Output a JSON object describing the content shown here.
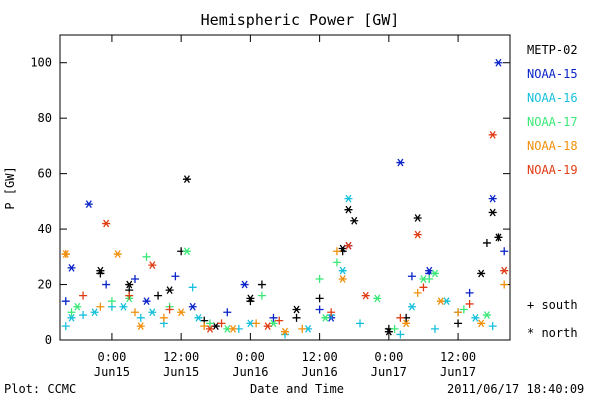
{
  "chart_data": {
    "type": "scatter",
    "title": "Hemispheric Power [GW]",
    "xlabel": "Date and Time",
    "ylabel": "P [GW]",
    "xlim": [
      "2011-06-14 15:00",
      "2011-06-17 21:00"
    ],
    "ylim": [
      0,
      110
    ],
    "yticks": [
      0,
      20,
      40,
      60,
      80,
      100
    ],
    "xtick_labels": [
      {
        "time": "2011-06-15 00:00",
        "top": "0:00",
        "bottom": "Jun15"
      },
      {
        "time": "2011-06-15 12:00",
        "top": "12:00",
        "bottom": "Jun15"
      },
      {
        "time": "2011-06-16 00:00",
        "top": "0:00",
        "bottom": "Jun16"
      },
      {
        "time": "2011-06-16 12:00",
        "top": "12:00",
        "bottom": "Jun16"
      },
      {
        "time": "2011-06-17 00:00",
        "top": "0:00",
        "bottom": "Jun17"
      },
      {
        "time": "2011-06-17 12:00",
        "top": "12:00",
        "bottom": "Jun17"
      }
    ],
    "marker_legend": [
      {
        "symbol": "+",
        "label": "south"
      },
      {
        "symbol": "*",
        "label": "north"
      }
    ],
    "series": [
      {
        "name": "METP-02",
        "color": "#000000",
        "south": [
          [
            "2011-06-14 22:00",
            24
          ],
          [
            "2011-06-15 03:00",
            18
          ],
          [
            "2011-06-15 08:00",
            16
          ],
          [
            "2011-06-15 12:00",
            32
          ],
          [
            "2011-06-15 16:00",
            7
          ],
          [
            "2011-06-16 00:00",
            14
          ],
          [
            "2011-06-16 02:00",
            20
          ],
          [
            "2011-06-16 08:00",
            8
          ],
          [
            "2011-06-16 12:00",
            15
          ],
          [
            "2011-06-16 16:00",
            32
          ],
          [
            "2011-06-17 00:00",
            4
          ],
          [
            "2011-06-17 03:00",
            8
          ],
          [
            "2011-06-17 12:00",
            6
          ],
          [
            "2011-06-17 17:00",
            35
          ],
          [
            "2011-06-17 19:00",
            37
          ]
        ],
        "north": [
          [
            "2011-06-14 22:00",
            25
          ],
          [
            "2011-06-15 03:00",
            20
          ],
          [
            "2011-06-15 10:00",
            18
          ],
          [
            "2011-06-15 13:00",
            58
          ],
          [
            "2011-06-15 18:00",
            5
          ],
          [
            "2011-06-16 00:00",
            15
          ],
          [
            "2011-06-16 08:00",
            11
          ],
          [
            "2011-06-16 16:00",
            33
          ],
          [
            "2011-06-16 18:00",
            43
          ],
          [
            "2011-06-16 17:00",
            47
          ],
          [
            "2011-06-17 00:00",
            3
          ],
          [
            "2011-06-17 05:00",
            44
          ],
          [
            "2011-06-17 16:00",
            24
          ],
          [
            "2011-06-17 18:00",
            46
          ],
          [
            "2011-06-17 19:00",
            37
          ]
        ]
      },
      {
        "name": "NOAA-15",
        "color": "#0a24c8",
        "south": [
          [
            "2011-06-14 16:00",
            14
          ],
          [
            "2011-06-14 23:00",
            20
          ],
          [
            "2011-06-15 04:00",
            22
          ],
          [
            "2011-06-15 11:00",
            23
          ],
          [
            "2011-06-15 20:00",
            10
          ],
          [
            "2011-06-16 04:00",
            8
          ],
          [
            "2011-06-16 12:00",
            11
          ],
          [
            "2011-06-17 04:00",
            23
          ],
          [
            "2011-06-17 07:00",
            24
          ],
          [
            "2011-06-17 14:00",
            17
          ],
          [
            "2011-06-17 20:00",
            32
          ]
        ],
        "north": [
          [
            "2011-06-14 17:00",
            26
          ],
          [
            "2011-06-14 20:00",
            49
          ],
          [
            "2011-06-15 06:00",
            14
          ],
          [
            "2011-06-15 14:00",
            12
          ],
          [
            "2011-06-15 23:00",
            20
          ],
          [
            "2011-06-16 14:00",
            8
          ],
          [
            "2011-06-16 17:00",
            34
          ],
          [
            "2011-06-17 02:00",
            64
          ],
          [
            "2011-06-17 07:00",
            25
          ],
          [
            "2011-06-17 18:00",
            51
          ],
          [
            "2011-06-17 19:00",
            100
          ]
        ]
      },
      {
        "name": "NOAA-16",
        "color": "#18c0dc",
        "south": [
          [
            "2011-06-14 16:00",
            5
          ],
          [
            "2011-06-14 19:00",
            9
          ],
          [
            "2011-06-15 00:00",
            12
          ],
          [
            "2011-06-15 05:00",
            8
          ],
          [
            "2011-06-15 09:00",
            6
          ],
          [
            "2011-06-15 14:00",
            19
          ],
          [
            "2011-06-15 22:00",
            4
          ],
          [
            "2011-06-16 06:00",
            2
          ],
          [
            "2011-06-16 14:00",
            9
          ],
          [
            "2011-06-16 19:00",
            6
          ],
          [
            "2011-06-17 02:00",
            2
          ],
          [
            "2011-06-17 08:00",
            4
          ],
          [
            "2011-06-17 12:00",
            10
          ],
          [
            "2011-06-17 18:00",
            5
          ]
        ],
        "north": [
          [
            "2011-06-14 17:00",
            8
          ],
          [
            "2011-06-14 21:00",
            10
          ],
          [
            "2011-06-15 02:00",
            12
          ],
          [
            "2011-06-15 07:00",
            10
          ],
          [
            "2011-06-15 15:00",
            8
          ],
          [
            "2011-06-16 00:00",
            6
          ],
          [
            "2011-06-16 10:00",
            4
          ],
          [
            "2011-06-16 16:00",
            25
          ],
          [
            "2011-06-16 17:00",
            51
          ],
          [
            "2011-06-17 04:00",
            12
          ],
          [
            "2011-06-17 10:00",
            14
          ],
          [
            "2011-06-17 15:00",
            8
          ]
        ]
      },
      {
        "name": "NOAA-17",
        "color": "#3ce878",
        "south": [
          [
            "2011-06-14 17:00",
            10
          ],
          [
            "2011-06-15 00:00",
            14
          ],
          [
            "2011-06-15 06:00",
            30
          ],
          [
            "2011-06-15 10:00",
            12
          ],
          [
            "2011-06-15 17:00",
            6
          ],
          [
            "2011-06-16 02:00",
            16
          ],
          [
            "2011-06-16 12:00",
            22
          ],
          [
            "2011-06-16 15:00",
            28
          ],
          [
            "2011-06-17 01:00",
            4
          ],
          [
            "2011-06-17 07:00",
            22
          ],
          [
            "2011-06-17 13:00",
            11
          ]
        ],
        "north": [
          [
            "2011-06-14 18:00",
            12
          ],
          [
            "2011-06-15 03:00",
            15
          ],
          [
            "2011-06-15 13:00",
            32
          ],
          [
            "2011-06-15 20:00",
            4
          ],
          [
            "2011-06-16 04:00",
            6
          ],
          [
            "2011-06-16 13:00",
            8
          ],
          [
            "2011-06-16 22:00",
            15
          ],
          [
            "2011-06-17 06:00",
            22
          ],
          [
            "2011-06-17 08:00",
            24
          ],
          [
            "2011-06-17 17:00",
            9
          ]
        ]
      },
      {
        "name": "NOAA-18",
        "color": "#f0900c",
        "south": [
          [
            "2011-06-14 16:00",
            31
          ],
          [
            "2011-06-14 22:00",
            12
          ],
          [
            "2011-06-15 04:00",
            10
          ],
          [
            "2011-06-15 09:00",
            8
          ],
          [
            "2011-06-15 16:00",
            5
          ],
          [
            "2011-06-16 01:00",
            6
          ],
          [
            "2011-06-16 09:00",
            4
          ],
          [
            "2011-06-16 15:00",
            32
          ],
          [
            "2011-06-17 05:00",
            17
          ],
          [
            "2011-06-17 12:00",
            10
          ],
          [
            "2011-06-17 20:00",
            20
          ]
        ],
        "north": [
          [
            "2011-06-14 16:00",
            31
          ],
          [
            "2011-06-15 01:00",
            31
          ],
          [
            "2011-06-15 05:00",
            5
          ],
          [
            "2011-06-15 12:00",
            10
          ],
          [
            "2011-06-15 21:00",
            4
          ],
          [
            "2011-06-16 06:00",
            3
          ],
          [
            "2011-06-16 16:00",
            22
          ],
          [
            "2011-06-17 03:00",
            6
          ],
          [
            "2011-06-17 09:00",
            14
          ],
          [
            "2011-06-17 16:00",
            6
          ]
        ]
      },
      {
        "name": "NOAA-19",
        "color": "#e03c14",
        "south": [
          [
            "2011-06-14 19:00",
            16
          ],
          [
            "2011-06-15 03:00",
            16
          ],
          [
            "2011-06-15 10:00",
            11
          ],
          [
            "2011-06-15 19:00",
            6
          ],
          [
            "2011-06-16 05:00",
            7
          ],
          [
            "2011-06-16 14:00",
            10
          ],
          [
            "2011-06-17 02:00",
            8
          ],
          [
            "2011-06-17 06:00",
            19
          ],
          [
            "2011-06-17 14:00",
            13
          ]
        ],
        "north": [
          [
            "2011-06-14 23:00",
            42
          ],
          [
            "2011-06-15 07:00",
            27
          ],
          [
            "2011-06-15 17:00",
            4
          ],
          [
            "2011-06-16 03:00",
            5
          ],
          [
            "2011-06-16 17:00",
            34
          ],
          [
            "2011-06-16 20:00",
            16
          ],
          [
            "2011-06-17 05:00",
            38
          ],
          [
            "2011-06-17 18:00",
            74
          ],
          [
            "2011-06-17 20:00",
            25
          ]
        ]
      }
    ]
  },
  "footer": {
    "plot_credit": "Plot: CCMC",
    "timestamp": "2011/06/17 18:40:09"
  }
}
